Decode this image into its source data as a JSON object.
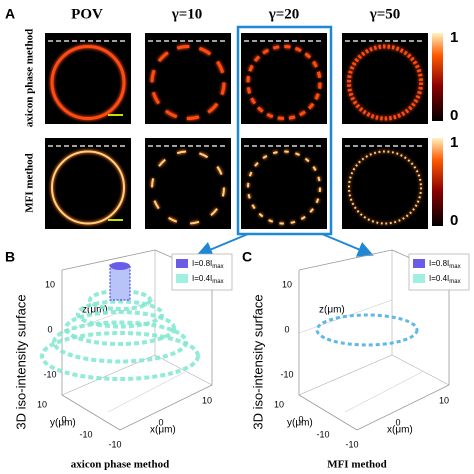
{
  "panel_a": {
    "label": "A",
    "columns": [
      "POV",
      "γ=10",
      "γ=20",
      "γ=50"
    ],
    "rows": [
      "axicon phase method",
      "MFI method"
    ],
    "colorbar_max": "1",
    "colorbar_min": "0"
  },
  "panel_b": {
    "label": "B",
    "legend": [
      {
        "text": "I=0.8I",
        "sub": "max"
      },
      {
        "text": "I=0.4I",
        "sub": "max"
      }
    ],
    "side_label": "3D iso-intensity surface",
    "z_label": "z(μm)",
    "x_label": "x(μm)",
    "y_label": "y(μm)",
    "z_ticks": [
      10,
      0,
      -10
    ],
    "x_ticks": [
      -10,
      0,
      10
    ],
    "y_ticks": [
      10,
      0,
      -10
    ],
    "caption": "axicon phase method"
  },
  "panel_c": {
    "label": "C",
    "legend": [
      {
        "text": "I=0.8I",
        "sub": "max"
      },
      {
        "text": "I=0.4I",
        "sub": "max"
      }
    ],
    "side_label": "3D iso-intensity surface",
    "z_label": "z(μm)",
    "x_label": "x(μm)",
    "y_label": "y(μm)",
    "z_ticks": [
      10,
      0,
      -10
    ],
    "x_ticks": [
      -10,
      0,
      10
    ],
    "y_ticks": [
      10,
      0,
      -10
    ],
    "caption": "MFI method"
  }
}
